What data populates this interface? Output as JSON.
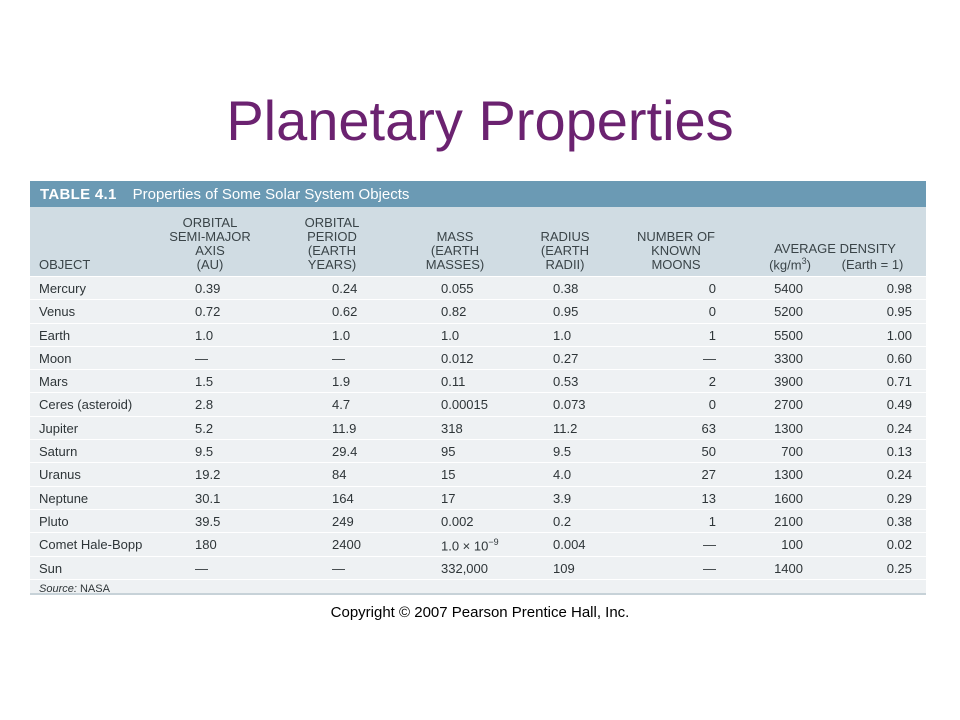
{
  "slide": {
    "title": "Planetary Properties",
    "copyright": "Copyright © 2007 Pearson Prentice Hall, Inc."
  },
  "table": {
    "number": "TABLE 4.1",
    "caption": "Properties of Some Solar System Objects",
    "headers": {
      "object": "OBJECT",
      "axis": "ORBITAL\nSEMI-MAJOR\nAXIS\n(AU)",
      "period": "ORBITAL\nPERIOD\n(EARTH\nYEARS)",
      "mass": "MASS\n(EARTH\nMASSES)",
      "radius": "RADIUS\n(EARTH\nRADII)",
      "moons": "NUMBER OF\nKNOWN\nMOONS",
      "density": "AVERAGE DENSITY",
      "density_kg_unit": "(kg/m",
      "density_kg_exp": "3",
      "density_kg_close": ")",
      "density_earth": "(Earth = 1)"
    },
    "rows": [
      {
        "object": "Mercury",
        "axis": "0.39",
        "period": "0.24",
        "mass": "0.055",
        "radius": "0.38",
        "moons": "0",
        "density_kg": "5400",
        "density_earth": "0.98"
      },
      {
        "object": "Venus",
        "axis": "0.72",
        "period": "0.62",
        "mass": "0.82",
        "radius": "0.95",
        "moons": "0",
        "density_kg": "5200",
        "density_earth": "0.95"
      },
      {
        "object": "Earth",
        "axis": "1.0",
        "period": "1.0",
        "mass": "1.0",
        "radius": "1.0",
        "moons": "1",
        "density_kg": "5500",
        "density_earth": "1.00"
      },
      {
        "object": "Moon",
        "axis": "—",
        "period": "—",
        "mass": "0.012",
        "radius": "0.27",
        "moons": "—",
        "density_kg": "3300",
        "density_earth": "0.60"
      },
      {
        "object": "Mars",
        "axis": "1.5",
        "period": "1.9",
        "mass": "0.11",
        "radius": "0.53",
        "moons": "2",
        "density_kg": "3900",
        "density_earth": "0.71"
      },
      {
        "object": "Ceres (asteroid)",
        "axis": "2.8",
        "period": "4.7",
        "mass": "0.00015",
        "radius": "0.073",
        "moons": "0",
        "density_kg": "2700",
        "density_earth": "0.49"
      },
      {
        "object": "Jupiter",
        "axis": "5.2",
        "period": "11.9",
        "mass": "318",
        "radius": "11.2",
        "moons": "63",
        "density_kg": "1300",
        "density_earth": "0.24"
      },
      {
        "object": "Saturn",
        "axis": "9.5",
        "period": "29.4",
        "mass": "95",
        "radius": "9.5",
        "moons": "50",
        "density_kg": "700",
        "density_earth": "0.13"
      },
      {
        "object": "Uranus",
        "axis": "19.2",
        "period": "84",
        "mass": "15",
        "radius": "4.0",
        "moons": "27",
        "density_kg": "1300",
        "density_earth": "0.24"
      },
      {
        "object": "Neptune",
        "axis": "30.1",
        "period": "164",
        "mass": "17",
        "radius": "3.9",
        "moons": "13",
        "density_kg": "1600",
        "density_earth": "0.29"
      },
      {
        "object": "Pluto",
        "axis": "39.5",
        "period": "249",
        "mass": "0.002",
        "radius": "0.2",
        "moons": "1",
        "density_kg": "2100",
        "density_earth": "0.38"
      },
      {
        "object": "Comet Hale-Bopp",
        "axis": "180",
        "period": "2400",
        "mass": "1.0 × 10",
        "mass_exp": "−9",
        "radius": "0.004",
        "moons": "—",
        "density_kg": "100",
        "density_earth": "0.02"
      },
      {
        "object": "Sun",
        "axis": "—",
        "period": "—",
        "mass": "332,000",
        "radius": "109",
        "moons": "—",
        "density_kg": "1400",
        "density_earth": "0.25"
      }
    ],
    "source_label": "Source:",
    "source_value": "NASA"
  },
  "colors": {
    "title": "#6b2270",
    "caption_bar": "#6b9ab4",
    "header_bg": "#d0dce3",
    "body_bg": "#eef1f3"
  }
}
